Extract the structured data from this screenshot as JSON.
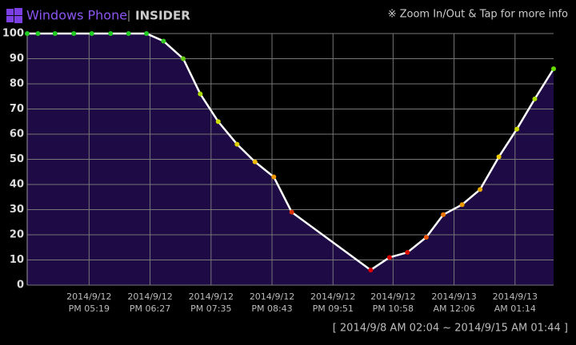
{
  "header": {
    "brand": "Windows Phone",
    "tag": "INSIDER",
    "hint": "※ Zoom In/Out & Tap for more info"
  },
  "footer": "[ 2014/9/8 AM 02:04 ~ 2014/9/15 AM 01:44 ]",
  "chart_data": {
    "type": "line",
    "x": [
      "2014-09-12T16:10",
      "2014-09-12T16:22",
      "2014-09-12T16:41",
      "2014-09-12T17:02",
      "2014-09-12T17:22",
      "2014-09-12T17:43",
      "2014-09-12T18:03",
      "2014-09-12T18:23",
      "2014-09-12T18:42",
      "2014-09-12T19:04",
      "2014-09-12T19:23",
      "2014-09-12T19:43",
      "2014-09-12T20:04",
      "2014-09-12T20:24",
      "2014-09-12T20:45",
      "2014-09-12T21:05",
      "2014-09-12T22:33",
      "2014-09-12T22:54",
      "2014-09-12T23:14",
      "2014-09-12T23:35",
      "2014-09-12T23:54",
      "2014-09-13T00:15",
      "2014-09-13T00:35",
      "2014-09-13T00:56",
      "2014-09-13T01:16",
      "2014-09-13T01:36",
      "2014-09-13T01:57"
    ],
    "values": [
      100,
      100,
      100,
      100,
      100,
      100,
      100,
      100,
      97,
      90,
      76,
      65,
      56,
      49,
      43,
      29,
      6,
      11,
      13,
      19,
      28,
      32,
      38,
      51,
      62,
      74,
      86
    ],
    "point_colors": [
      "#22cc22",
      "#22cc22",
      "#22cc22",
      "#22cc22",
      "#22cc22",
      "#22cc22",
      "#22cc22",
      "#22cc22",
      "#33cc22",
      "#66cc11",
      "#aadd00",
      "#ccdd00",
      "#ddcc00",
      "#eebb00",
      "#ee9900",
      "#dd3300",
      "#dd0000",
      "#dd0000",
      "#dd1100",
      "#ee5500",
      "#ee7700",
      "#ee9900",
      "#eeaa00",
      "#eecc00",
      "#ccdd00",
      "#aadd00",
      "#66dd00"
    ],
    "line_color": "#ffffff",
    "area_color": "#1e0a45",
    "xlim": [
      "2014-09-12T16:10",
      "2014-09-13T01:57"
    ],
    "xticks": [
      {
        "value": "2014-09-12T17:19",
        "label": [
          "2014/9/12",
          "PM 05:19"
        ]
      },
      {
        "value": "2014-09-12T18:27",
        "label": [
          "2014/9/12",
          "PM 06:27"
        ]
      },
      {
        "value": "2014-09-12T19:35",
        "label": [
          "2014/9/12",
          "PM 07:35"
        ]
      },
      {
        "value": "2014-09-12T20:43",
        "label": [
          "2014/9/12",
          "PM 08:43"
        ]
      },
      {
        "value": "2014-09-12T21:51",
        "label": [
          "2014/9/12",
          "PM 09:51"
        ]
      },
      {
        "value": "2014-09-12T22:58",
        "label": [
          "2014/9/12",
          "PM 10:58"
        ]
      },
      {
        "value": "2014-09-13T00:06",
        "label": [
          "2014/9/13",
          "AM 12:06"
        ]
      },
      {
        "value": "2014-09-13T01:14",
        "label": [
          "2014/9/13",
          "AM 01:14"
        ]
      }
    ],
    "ylim": [
      0,
      100
    ],
    "yticks": [
      0,
      10,
      20,
      30,
      40,
      50,
      60,
      70,
      80,
      90,
      100
    ],
    "grid": true
  }
}
